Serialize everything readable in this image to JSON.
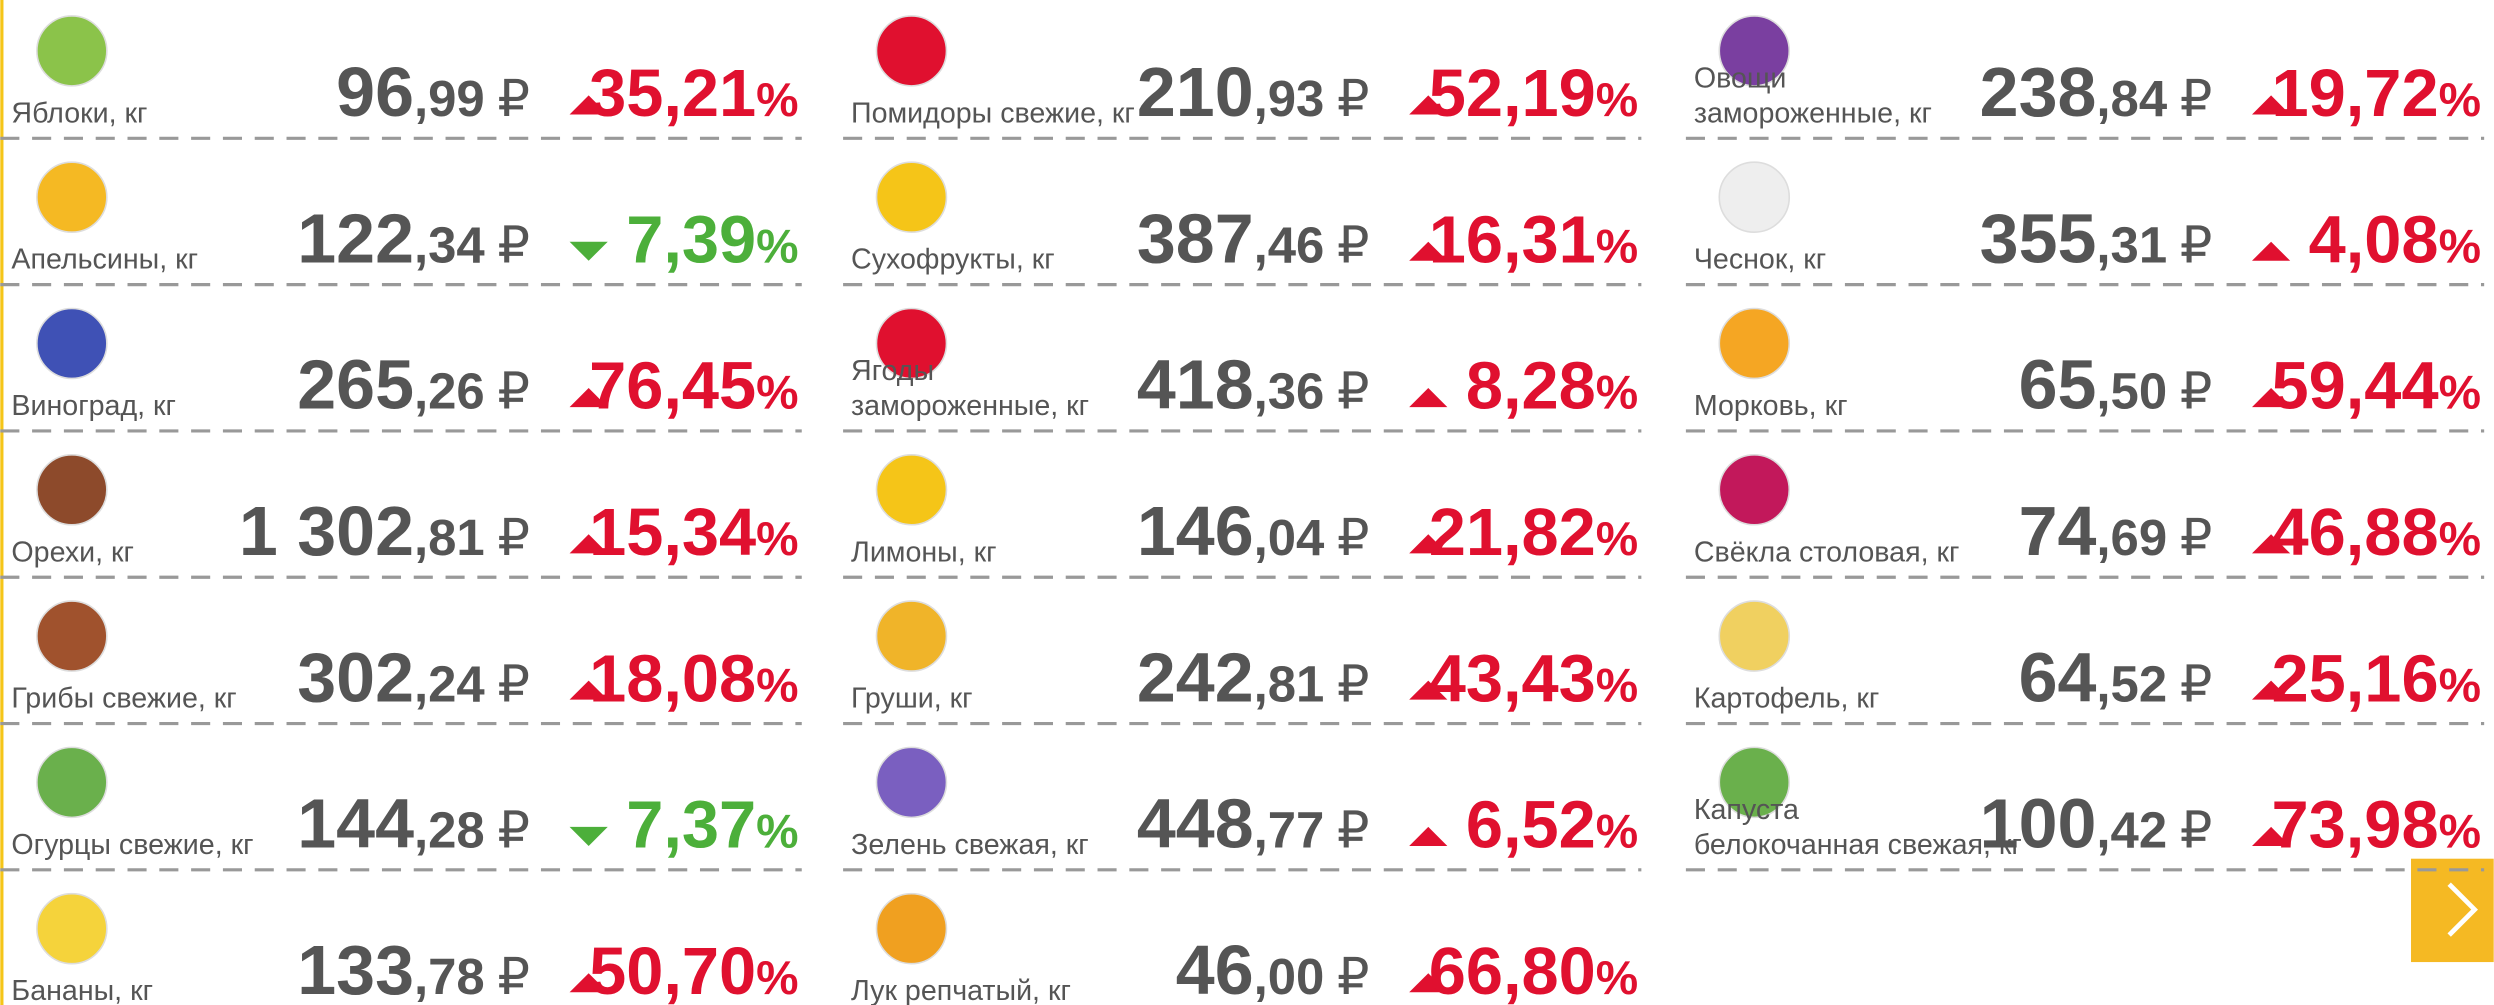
{
  "currency": "₽",
  "percent": "%",
  "columns": [
    {
      "items": [
        {
          "name": [
            "Яблоки, кг"
          ],
          "price_int": "96",
          "price_dec": ",99",
          "change": "35,21",
          "direction": "up"
        },
        {
          "name": [
            "Апельсины, кг"
          ],
          "price_int": "122",
          "price_dec": ",34",
          "change": "7,39",
          "direction": "down"
        },
        {
          "name": [
            "Виноград, кг"
          ],
          "price_int": "265",
          "price_dec": ",26",
          "change": "76,45",
          "direction": "up"
        },
        {
          "name": [
            "Орехи, кг"
          ],
          "price_int": "1 302",
          "price_dec": ",81",
          "change": "15,34",
          "direction": "up"
        },
        {
          "name": [
            "Грибы свежие, кг"
          ],
          "price_int": "302",
          "price_dec": ",24",
          "change": "18,08",
          "direction": "up"
        },
        {
          "name": [
            "Огурцы свежие, кг"
          ],
          "price_int": "144",
          "price_dec": ",28",
          "change": "7,37",
          "direction": "down"
        },
        {
          "name": [
            "Бананы, кг"
          ],
          "price_int": "133",
          "price_dec": ",78",
          "change": "50,70",
          "direction": "up"
        }
      ]
    },
    {
      "items": [
        {
          "name": [
            "Помидоры свежие, кг"
          ],
          "price_int": "210",
          "price_dec": ",93",
          "change": "52,19",
          "direction": "up"
        },
        {
          "name": [
            "Сухофрукты, кг"
          ],
          "price_int": "387",
          "price_dec": ",46",
          "change": "16,31",
          "direction": "up"
        },
        {
          "name": [
            "Ягоды",
            "замороженные, кг"
          ],
          "price_int": "418",
          "price_dec": ",36",
          "change": "8,28",
          "direction": "up"
        },
        {
          "name": [
            "Лимоны, кг"
          ],
          "price_int": "146",
          "price_dec": ",04",
          "change": "21,82",
          "direction": "up"
        },
        {
          "name": [
            "Груши, кг"
          ],
          "price_int": "242",
          "price_dec": ",81",
          "change": "43,43",
          "direction": "up"
        },
        {
          "name": [
            "Зелень свежая, кг"
          ],
          "price_int": "448",
          "price_dec": ",77",
          "change": "6,52",
          "direction": "up"
        },
        {
          "name": [
            "Лук репчатый, кг"
          ],
          "price_int": "46",
          "price_dec": ",00",
          "change": "66,80",
          "direction": "up"
        }
      ]
    },
    {
      "items": [
        {
          "name": [
            "Овощи",
            "замороженные, кг"
          ],
          "price_int": "238",
          "price_dec": ",84",
          "change": "19,72",
          "direction": "up"
        },
        {
          "name": [
            "Чеснок, кг"
          ],
          "price_int": "355",
          "price_dec": ",31",
          "change": "4,08",
          "direction": "up"
        },
        {
          "name": [
            "Морковь, кг"
          ],
          "price_int": "65",
          "price_dec": ",50",
          "change": "59,44",
          "direction": "up"
        },
        {
          "name": [
            "Свёкла столовая, кг"
          ],
          "price_int": "74",
          "price_dec": ",69",
          "change": "46,88",
          "direction": "up"
        },
        {
          "name": [
            "Картофель, кг"
          ],
          "price_int": "64",
          "price_dec": ",52",
          "change": "25,16",
          "direction": "up"
        },
        {
          "name": [
            "Капуста",
            "белокочанная свежая, кг"
          ],
          "price_int": "100",
          "price_dec": ",42",
          "change": "73,98",
          "direction": "up"
        }
      ]
    }
  ]
}
